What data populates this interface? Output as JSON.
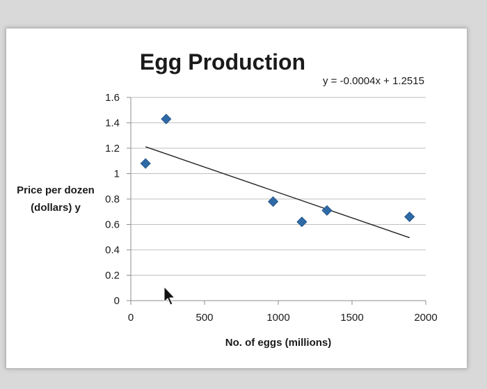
{
  "chart_data": {
    "type": "scatter",
    "title": "Egg Production",
    "xlabel": "No. of eggs (millions)",
    "ylabel_lines": [
      "Price per dozen",
      "(dollars) y"
    ],
    "equation": "y = -0.0004x + 1.2515",
    "xlim": [
      0,
      2000
    ],
    "ylim": [
      0,
      1.6
    ],
    "x_ticks": [
      "0",
      "500",
      "1000",
      "1500",
      "2000"
    ],
    "y_ticks": [
      "0",
      "0.2",
      "0.4",
      "0.6",
      "0.8",
      "1",
      "1.2",
      "1.4",
      "1.6"
    ],
    "grid": true,
    "points": [
      {
        "x": 100,
        "y": 1.08
      },
      {
        "x": 240,
        "y": 1.43
      },
      {
        "x": 965,
        "y": 0.78
      },
      {
        "x": 1160,
        "y": 0.62
      },
      {
        "x": 1330,
        "y": 0.71
      },
      {
        "x": 1890,
        "y": 0.66
      }
    ],
    "trendline": {
      "x_start": 100,
      "x_end": 1890,
      "slope": -0.0004,
      "intercept": 1.2515
    },
    "colors": {
      "marker": "#2e6aa6",
      "trendline": "#222222",
      "grid": "#bfbfbf"
    }
  }
}
